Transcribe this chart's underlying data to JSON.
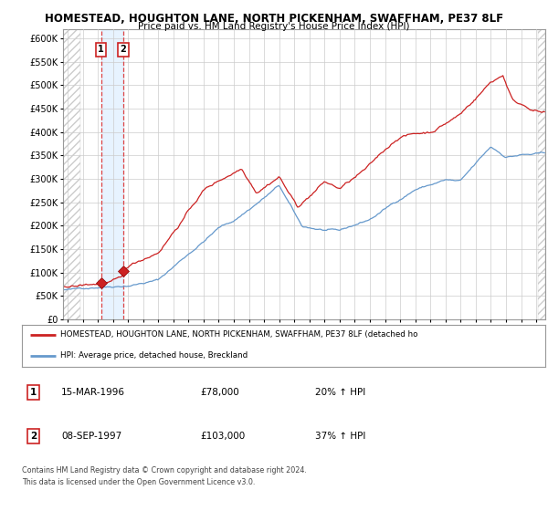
{
  "title1": "HOMESTEAD, HOUGHTON LANE, NORTH PICKENHAM, SWAFFHAM, PE37 8LF",
  "title2": "Price paid vs. HM Land Registry's House Price Index (HPI)",
  "legend_label1": "HOMESTEAD, HOUGHTON LANE, NORTH PICKENHAM, SWAFFHAM, PE37 8LF (detached ho",
  "legend_label2": "HPI: Average price, detached house, Breckland",
  "transaction1_date": "15-MAR-1996",
  "transaction1_price": "£78,000",
  "transaction1_pct": "20% ↑ HPI",
  "transaction2_date": "08-SEP-1997",
  "transaction2_price": "£103,000",
  "transaction2_pct": "37% ↑ HPI",
  "footer": "Contains HM Land Registry data © Crown copyright and database right 2024.\nThis data is licensed under the Open Government Licence v3.0.",
  "hpi_color": "#6699cc",
  "price_color": "#cc2222",
  "marker_color": "#cc2222",
  "vline_color": "#dd4444",
  "shade_color": "#ddeeff",
  "hatch_color": "#cccccc",
  "ylim": [
    0,
    620000
  ],
  "yticks": [
    0,
    50000,
    100000,
    150000,
    200000,
    250000,
    300000,
    350000,
    400000,
    450000,
    500000,
    550000,
    600000
  ],
  "plot_bg": "#ffffff",
  "grid_color": "#cccccc",
  "transaction1_x": 1996.21,
  "transaction1_y": 78000,
  "transaction2_x": 1997.69,
  "transaction2_y": 103000,
  "xmin": 1993.7,
  "xmax": 2025.6,
  "hatch_right_start": 2025.1
}
